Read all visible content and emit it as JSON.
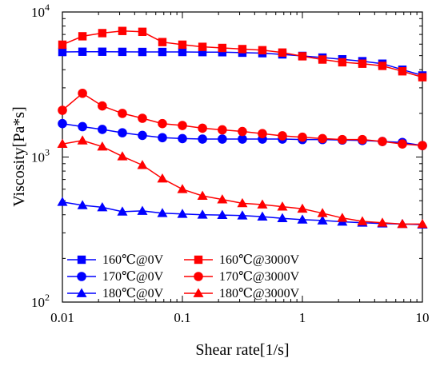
{
  "chart_data": {
    "type": "line",
    "title": "",
    "xlabel": "Shear rate[1/s]",
    "ylabel": "Viscosity[Pa*s]",
    "xscale": "log",
    "yscale": "log",
    "xlim": [
      0.01,
      10
    ],
    "ylim": [
      100,
      10000
    ],
    "x_ticks": [
      {
        "value": 0.01,
        "label": "0.01"
      },
      {
        "value": 0.1,
        "label": "0.1"
      },
      {
        "value": 1,
        "label": "1"
      },
      {
        "value": 10,
        "label": "10"
      }
    ],
    "y_ticks": [
      {
        "value": 100,
        "base": "10",
        "exp": "2"
      },
      {
        "value": 1000,
        "base": "10",
        "exp": "3"
      },
      {
        "value": 10000,
        "base": "10",
        "exp": "4"
      }
    ],
    "grid": false,
    "legend_position": "bottom-left",
    "series": [
      {
        "name": "160℃@0V",
        "color": "#0000ff",
        "marker": "square",
        "points": [
          [
            0.01,
            5300
          ],
          [
            0.0147,
            5320
          ],
          [
            0.0215,
            5320
          ],
          [
            0.0316,
            5310
          ],
          [
            0.0464,
            5300
          ],
          [
            0.0681,
            5300
          ],
          [
            0.1,
            5300
          ],
          [
            0.147,
            5290
          ],
          [
            0.215,
            5280
          ],
          [
            0.316,
            5240
          ],
          [
            0.464,
            5200
          ],
          [
            0.681,
            5100
          ],
          [
            1,
            4980
          ],
          [
            1.47,
            4850
          ],
          [
            2.15,
            4720
          ],
          [
            3.16,
            4580
          ],
          [
            4.64,
            4400
          ],
          [
            6.81,
            4000
          ],
          [
            10,
            3650
          ]
        ]
      },
      {
        "name": "160℃@3000V",
        "color": "#ff0000",
        "marker": "square",
        "points": [
          [
            0.01,
            5950
          ],
          [
            0.0147,
            6800
          ],
          [
            0.0215,
            7150
          ],
          [
            0.0316,
            7400
          ],
          [
            0.0464,
            7300
          ],
          [
            0.0681,
            6200
          ],
          [
            0.1,
            5950
          ],
          [
            0.147,
            5750
          ],
          [
            0.215,
            5650
          ],
          [
            0.316,
            5550
          ],
          [
            0.464,
            5450
          ],
          [
            0.681,
            5250
          ],
          [
            1,
            4950
          ],
          [
            1.47,
            4700
          ],
          [
            2.15,
            4500
          ],
          [
            3.16,
            4400
          ],
          [
            4.64,
            4250
          ],
          [
            6.81,
            3900
          ],
          [
            10,
            3550
          ]
        ]
      },
      {
        "name": "170℃@0V",
        "color": "#0000ff",
        "marker": "circle",
        "points": [
          [
            0.01,
            1700
          ],
          [
            0.0147,
            1620
          ],
          [
            0.0215,
            1550
          ],
          [
            0.0316,
            1470
          ],
          [
            0.0464,
            1410
          ],
          [
            0.0681,
            1360
          ],
          [
            0.1,
            1340
          ],
          [
            0.147,
            1330
          ],
          [
            0.215,
            1330
          ],
          [
            0.316,
            1330
          ],
          [
            0.464,
            1330
          ],
          [
            0.681,
            1330
          ],
          [
            1,
            1320
          ],
          [
            1.47,
            1320
          ],
          [
            2.15,
            1310
          ],
          [
            3.16,
            1300
          ],
          [
            4.64,
            1280
          ],
          [
            6.81,
            1260
          ],
          [
            10,
            1200
          ]
        ]
      },
      {
        "name": "170℃@3000V",
        "color": "#ff0000",
        "marker": "circle",
        "points": [
          [
            0.01,
            2100
          ],
          [
            0.0147,
            2750
          ],
          [
            0.0215,
            2250
          ],
          [
            0.0316,
            2000
          ],
          [
            0.0464,
            1850
          ],
          [
            0.0681,
            1700
          ],
          [
            0.1,
            1650
          ],
          [
            0.147,
            1580
          ],
          [
            0.215,
            1540
          ],
          [
            0.316,
            1500
          ],
          [
            0.464,
            1450
          ],
          [
            0.681,
            1400
          ],
          [
            1,
            1370
          ],
          [
            1.47,
            1340
          ],
          [
            2.15,
            1320
          ],
          [
            3.16,
            1320
          ],
          [
            4.64,
            1280
          ],
          [
            6.81,
            1230
          ],
          [
            10,
            1200
          ]
        ]
      },
      {
        "name": "180℃@0V",
        "color": "#0000ff",
        "marker": "triangle",
        "points": [
          [
            0.01,
            490
          ],
          [
            0.0147,
            465
          ],
          [
            0.0215,
            450
          ],
          [
            0.0316,
            420
          ],
          [
            0.0464,
            425
          ],
          [
            0.0681,
            410
          ],
          [
            0.1,
            405
          ],
          [
            0.147,
            400
          ],
          [
            0.215,
            398
          ],
          [
            0.316,
            395
          ],
          [
            0.464,
            388
          ],
          [
            0.681,
            378
          ],
          [
            1,
            370
          ],
          [
            1.47,
            365
          ],
          [
            2.15,
            358
          ],
          [
            3.16,
            352
          ],
          [
            4.64,
            348
          ],
          [
            6.81,
            345
          ],
          [
            10,
            342
          ]
        ]
      },
      {
        "name": "180℃@3000V",
        "color": "#ff0000",
        "marker": "triangle",
        "points": [
          [
            0.01,
            1230
          ],
          [
            0.0147,
            1300
          ],
          [
            0.0215,
            1180
          ],
          [
            0.0316,
            1010
          ],
          [
            0.0464,
            880
          ],
          [
            0.0681,
            710
          ],
          [
            0.1,
            600
          ],
          [
            0.147,
            540
          ],
          [
            0.215,
            510
          ],
          [
            0.316,
            480
          ],
          [
            0.464,
            470
          ],
          [
            0.681,
            455
          ],
          [
            1,
            440
          ],
          [
            1.47,
            410
          ],
          [
            2.15,
            380
          ],
          [
            3.16,
            360
          ],
          [
            4.64,
            352
          ],
          [
            6.81,
            345
          ],
          [
            10,
            345
          ]
        ]
      }
    ]
  }
}
